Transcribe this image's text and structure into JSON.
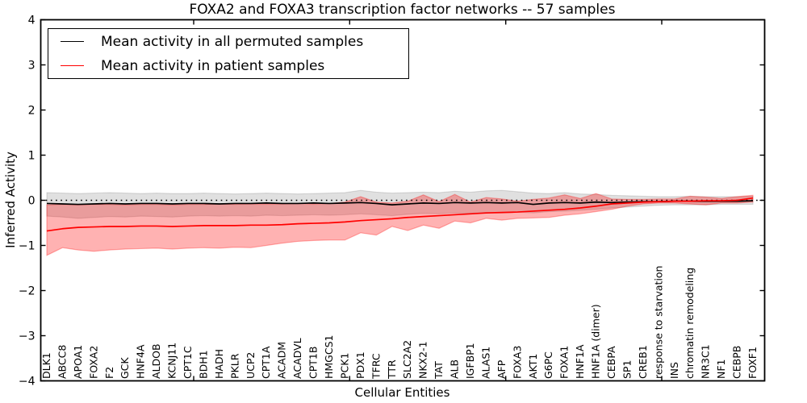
{
  "title": "FOXA2 and FOXA3 transcription factor networks -- 57 samples",
  "legend": {
    "entries": [
      {
        "label": "Mean activity in all permuted samples",
        "color": "#000000"
      },
      {
        "label": "Mean activity in patient samples",
        "color": "#ff0000"
      }
    ],
    "position": "upper left"
  },
  "chart_data": {
    "type": "line",
    "title": "FOXA2 and FOXA3 transcription factor networks -- 57 samples",
    "xlabel": "Cellular Entities",
    "ylabel": "Inferred Activity",
    "ylim": [
      -4,
      4
    ],
    "yticks": [
      4,
      3,
      2,
      1,
      0,
      -1,
      -2,
      -3,
      -4
    ],
    "grid": false,
    "plot_background": "#ffffff",
    "zero_reference_line": {
      "y": 0,
      "style": "dotted",
      "color": "#000000"
    },
    "categories": [
      "DLK1",
      "ABCC8",
      "APOA1",
      "FOXA2",
      "F2",
      "GCK",
      "HNF4A",
      "ALDOB",
      "KCNJ11",
      "CPT1C",
      "BDH1",
      "HADH",
      "PKLR",
      "UCP2",
      "CPT1A",
      "ACADM",
      "ACADVL",
      "CPT1B",
      "HMGCS1",
      "PCK1",
      "PDX1",
      "TFRC",
      "TTR",
      "SLC2A2",
      "NKX2-1",
      "TAT",
      "ALB",
      "IGFBP1",
      "ALAS1",
      "AFP",
      "FOXA3",
      "AKT1",
      "G6PC",
      "FOXA1",
      "HNF1A",
      "HNF1A (dimer)",
      "CEBPA",
      "SP1",
      "CREB1",
      "response to starvation",
      "INS",
      "chromatin remodeling",
      "NR3C1",
      "NF1",
      "CEBPB",
      "FOXF1"
    ],
    "series": [
      {
        "name": "Mean activity in all permuted samples",
        "color": "#000000",
        "band_color": "rgba(0,0,0,0.12)",
        "values": [
          -0.07,
          -0.08,
          -0.09,
          -0.08,
          -0.07,
          -0.08,
          -0.07,
          -0.07,
          -0.08,
          -0.07,
          -0.07,
          -0.08,
          -0.07,
          -0.07,
          -0.06,
          -0.07,
          -0.07,
          -0.06,
          -0.07,
          -0.06,
          -0.05,
          -0.07,
          -0.1,
          -0.08,
          -0.06,
          -0.07,
          -0.05,
          -0.06,
          -0.05,
          -0.06,
          -0.05,
          -0.09,
          -0.06,
          -0.05,
          -0.06,
          -0.04,
          -0.05,
          -0.04,
          -0.03,
          -0.03,
          -0.02,
          -0.02,
          -0.02,
          -0.02,
          -0.02,
          -0.01
        ],
        "band_upper": [
          0.17,
          0.16,
          0.15,
          0.16,
          0.17,
          0.16,
          0.15,
          0.16,
          0.15,
          0.15,
          0.16,
          0.15,
          0.14,
          0.15,
          0.16,
          0.15,
          0.14,
          0.15,
          0.16,
          0.17,
          0.22,
          0.18,
          0.16,
          0.17,
          0.18,
          0.17,
          0.2,
          0.18,
          0.21,
          0.22,
          0.19,
          0.16,
          0.15,
          0.17,
          0.14,
          0.13,
          0.11,
          0.1,
          0.09,
          0.08,
          0.08,
          0.09,
          0.08,
          0.08,
          0.08,
          0.09
        ],
        "band_lower": [
          -0.35,
          -0.37,
          -0.4,
          -0.38,
          -0.36,
          -0.37,
          -0.35,
          -0.36,
          -0.37,
          -0.35,
          -0.34,
          -0.35,
          -0.34,
          -0.35,
          -0.33,
          -0.34,
          -0.33,
          -0.32,
          -0.33,
          -0.32,
          -0.3,
          -0.32,
          -0.34,
          -0.31,
          -0.29,
          -0.3,
          -0.28,
          -0.29,
          -0.27,
          -0.28,
          -0.26,
          -0.28,
          -0.25,
          -0.24,
          -0.22,
          -0.2,
          -0.17,
          -0.15,
          -0.13,
          -0.11,
          -0.1,
          -0.1,
          -0.1,
          -0.09,
          -0.09,
          -0.09
        ]
      },
      {
        "name": "Mean activity in patient samples",
        "color": "#ff0000",
        "band_color": "rgba(255,0,0,0.30)",
        "values": [
          -0.68,
          -0.63,
          -0.6,
          -0.59,
          -0.58,
          -0.58,
          -0.57,
          -0.57,
          -0.58,
          -0.57,
          -0.56,
          -0.56,
          -0.56,
          -0.55,
          -0.55,
          -0.54,
          -0.52,
          -0.51,
          -0.5,
          -0.48,
          -0.45,
          -0.43,
          -0.41,
          -0.38,
          -0.36,
          -0.34,
          -0.32,
          -0.3,
          -0.28,
          -0.27,
          -0.26,
          -0.24,
          -0.22,
          -0.2,
          -0.17,
          -0.13,
          -0.08,
          -0.06,
          -0.04,
          -0.03,
          -0.02,
          -0.02,
          -0.01,
          -0.01,
          0,
          0.05
        ],
        "band_upper": [
          -0.1,
          -0.09,
          -0.1,
          -0.09,
          -0.09,
          -0.1,
          -0.09,
          -0.09,
          -0.1,
          -0.09,
          -0.09,
          -0.08,
          -0.09,
          -0.08,
          -0.08,
          -0.08,
          -0.07,
          -0.08,
          -0.07,
          -0.04,
          0.08,
          -0.04,
          -0.06,
          -0.02,
          0.12,
          -0.03,
          0.13,
          -0.04,
          0.06,
          0.03,
          -0.02,
          0.02,
          0.05,
          0.12,
          0.04,
          0.15,
          0.03,
          0.02,
          0.02,
          0.03,
          0.03,
          0.09,
          0.07,
          0.04,
          0.08,
          0.11
        ],
        "band_lower": [
          -1.22,
          -1.05,
          -1.1,
          -1.13,
          -1.1,
          -1.08,
          -1.07,
          -1.06,
          -1.08,
          -1.06,
          -1.05,
          -1.06,
          -1.04,
          -1.05,
          -1.0,
          -0.95,
          -0.91,
          -0.89,
          -0.88,
          -0.88,
          -0.72,
          -0.77,
          -0.58,
          -0.67,
          -0.55,
          -0.62,
          -0.46,
          -0.5,
          -0.4,
          -0.44,
          -0.4,
          -0.39,
          -0.38,
          -0.33,
          -0.3,
          -0.25,
          -0.2,
          -0.13,
          -0.08,
          -0.06,
          -0.06,
          -0.08,
          -0.1,
          -0.06,
          -0.06,
          -0.04
        ]
      }
    ]
  }
}
